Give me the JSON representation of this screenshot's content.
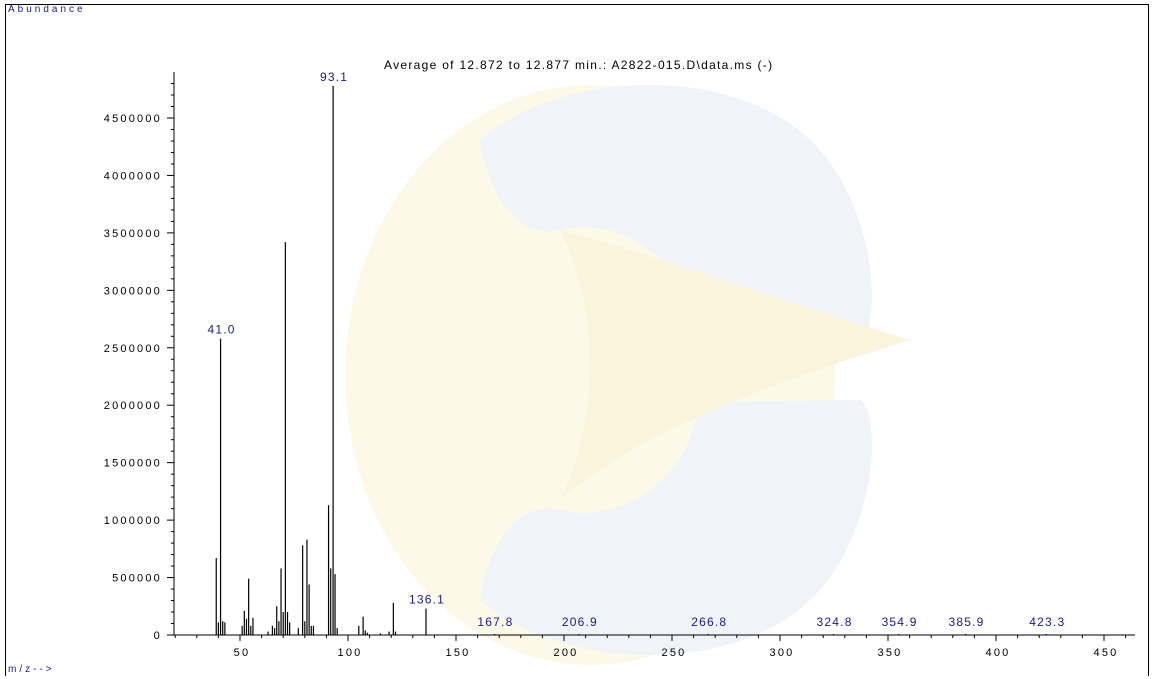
{
  "chart_data": {
    "type": "bar",
    "title": "Average of 12.872 to 12.877 min.: A2822-015.D\\data.ms (-)",
    "ylabel": "Abundance",
    "xlabel": "m/z-->",
    "xlim": [
      20,
      460
    ],
    "ylim": [
      0,
      4800000
    ],
    "x_ticks": [
      50,
      100,
      150,
      200,
      250,
      300,
      350,
      400,
      450
    ],
    "y_ticks": [
      0,
      500000,
      1000000,
      1500000,
      2000000,
      2500000,
      3000000,
      3500000,
      4000000,
      4500000
    ],
    "grid": false,
    "legend": "none",
    "peaks": [
      {
        "mz": 39.0,
        "abundance": 670000
      },
      {
        "mz": 40.0,
        "abundance": 110000
      },
      {
        "mz": 41.0,
        "abundance": 2580000,
        "label": "41.0"
      },
      {
        "mz": 42.0,
        "abundance": 120000
      },
      {
        "mz": 43.0,
        "abundance": 110000
      },
      {
        "mz": 51.0,
        "abundance": 80000
      },
      {
        "mz": 52.0,
        "abundance": 210000
      },
      {
        "mz": 53.0,
        "abundance": 140000
      },
      {
        "mz": 54.0,
        "abundance": 490000
      },
      {
        "mz": 55.0,
        "abundance": 80000
      },
      {
        "mz": 56.0,
        "abundance": 150000
      },
      {
        "mz": 63.0,
        "abundance": 30000
      },
      {
        "mz": 65.0,
        "abundance": 80000
      },
      {
        "mz": 66.0,
        "abundance": 60000
      },
      {
        "mz": 67.0,
        "abundance": 250000
      },
      {
        "mz": 68.0,
        "abundance": 120000
      },
      {
        "mz": 69.0,
        "abundance": 580000
      },
      {
        "mz": 70.0,
        "abundance": 200000
      },
      {
        "mz": 71.0,
        "abundance": 3420000
      },
      {
        "mz": 72.0,
        "abundance": 200000
      },
      {
        "mz": 73.0,
        "abundance": 110000
      },
      {
        "mz": 77.0,
        "abundance": 60000
      },
      {
        "mz": 79.0,
        "abundance": 780000
      },
      {
        "mz": 80.0,
        "abundance": 120000
      },
      {
        "mz": 81.0,
        "abundance": 830000
      },
      {
        "mz": 82.0,
        "abundance": 440000
      },
      {
        "mz": 83.0,
        "abundance": 80000
      },
      {
        "mz": 84.0,
        "abundance": 80000
      },
      {
        "mz": 91.0,
        "abundance": 1130000
      },
      {
        "mz": 92.0,
        "abundance": 580000
      },
      {
        "mz": 93.1,
        "abundance": 4780000,
        "label": "93.1"
      },
      {
        "mz": 94.0,
        "abundance": 530000
      },
      {
        "mz": 95.0,
        "abundance": 60000
      },
      {
        "mz": 105.0,
        "abundance": 80000
      },
      {
        "mz": 107.0,
        "abundance": 160000
      },
      {
        "mz": 108.0,
        "abundance": 40000
      },
      {
        "mz": 109.0,
        "abundance": 20000
      },
      {
        "mz": 115.0,
        "abundance": 15000
      },
      {
        "mz": 119.0,
        "abundance": 30000
      },
      {
        "mz": 121.0,
        "abundance": 280000
      },
      {
        "mz": 122.0,
        "abundance": 30000
      },
      {
        "mz": 136.1,
        "abundance": 230000,
        "label": "136.1"
      },
      {
        "mz": 167.8,
        "abundance": 5000,
        "label": "167.8"
      },
      {
        "mz": 206.9,
        "abundance": 5000,
        "label": "206.9"
      },
      {
        "mz": 266.8,
        "abundance": 4000,
        "label": "266.8"
      },
      {
        "mz": 324.8,
        "abundance": 4000,
        "label": "324.8"
      },
      {
        "mz": 354.9,
        "abundance": 4000,
        "label": "354.9"
      },
      {
        "mz": 385.9,
        "abundance": 4000,
        "label": "385.9"
      },
      {
        "mz": 423.3,
        "abundance": 4000,
        "label": "423.3"
      }
    ]
  }
}
